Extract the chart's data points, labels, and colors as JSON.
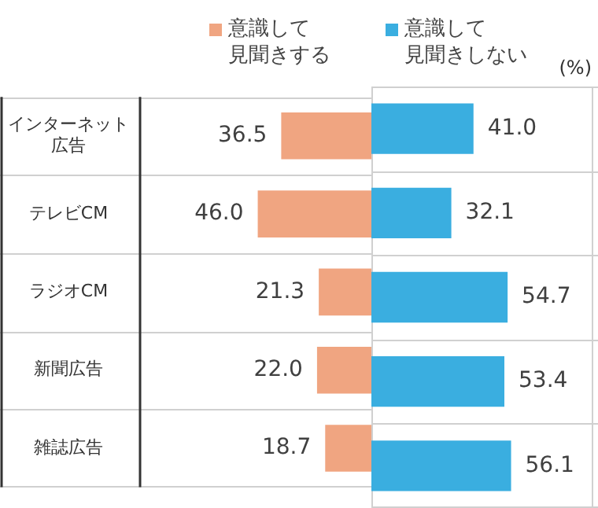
{
  "chart_data": [
    {
      "type": "bar",
      "orientation": "horizontal",
      "categories": [
        "インターネット広告",
        "テレビCM",
        "ラジオCM",
        "新聞広告",
        "雑誌広告"
      ],
      "series": [
        {
          "name": "意識して見聞きする",
          "color": "#f0a581",
          "values": [
            36.5,
            46.0,
            21.3,
            22.0,
            18.7
          ],
          "value_labels": [
            "36.5",
            "46.0",
            "21.3",
            "22.0",
            "18.7"
          ]
        }
      ],
      "xlim": [
        93,
        0
      ],
      "tick_labels": "y",
      "legend": "top"
    },
    {
      "type": "bar",
      "orientation": "horizontal",
      "categories": [
        null,
        null,
        null,
        null,
        null
      ],
      "series": [
        {
          "name": "意識して見聞きしない",
          "color": "#3aaee0",
          "values": [
            41.0,
            32.1,
            54.7,
            53.4,
            56.1
          ],
          "value_labels": [
            "41.0",
            "32.1",
            "54.7",
            "53.4",
            "56.1"
          ]
        }
      ],
      "xlim": [
        0,
        91
      ],
      "tick_labels": false,
      "legend": "top",
      "annotations": [
        "(%)"
      ]
    }
  ]
}
